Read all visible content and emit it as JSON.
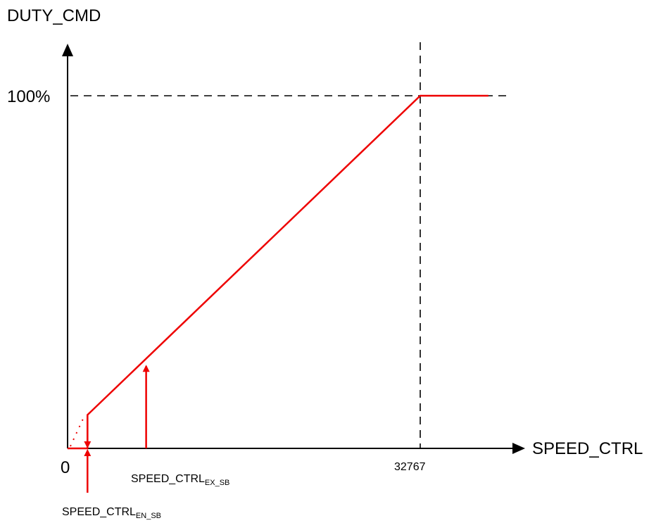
{
  "chart_data": {
    "type": "line",
    "ylabel": "DUTY_CMD",
    "xlabel": "SPEED_CTRL",
    "y_tick_label": "100%",
    "origin_label": "0",
    "x_tick_label": "32767",
    "threshold_labels": {
      "en_sb": {
        "base": "SPEED_CTRL",
        "sub": "EN_SB"
      },
      "ex_sb": {
        "base": "SPEED_CTRL",
        "sub": "EX_SB"
      }
    },
    "x_max": 32767,
    "y_max_percent": 100,
    "series": [
      {
        "color": "#ee0000",
        "points": [
          [
            0,
            0
          ],
          [
            1850,
            0
          ],
          [
            1850,
            9.5
          ],
          [
            32767,
            100
          ],
          [
            39100,
            100
          ]
        ]
      }
    ],
    "extrapolation_dotted": [
      [
        0,
        0
      ],
      [
        1850,
        9.5
      ]
    ],
    "hysteresis": {
      "en_sb_x": 1850,
      "ex_sb_x": 7300,
      "ex_sb_y_percent": 23.7
    },
    "reference_lines": [
      "x = 32767 (dashed)",
      "y = 100% (dashed)"
    ]
  }
}
